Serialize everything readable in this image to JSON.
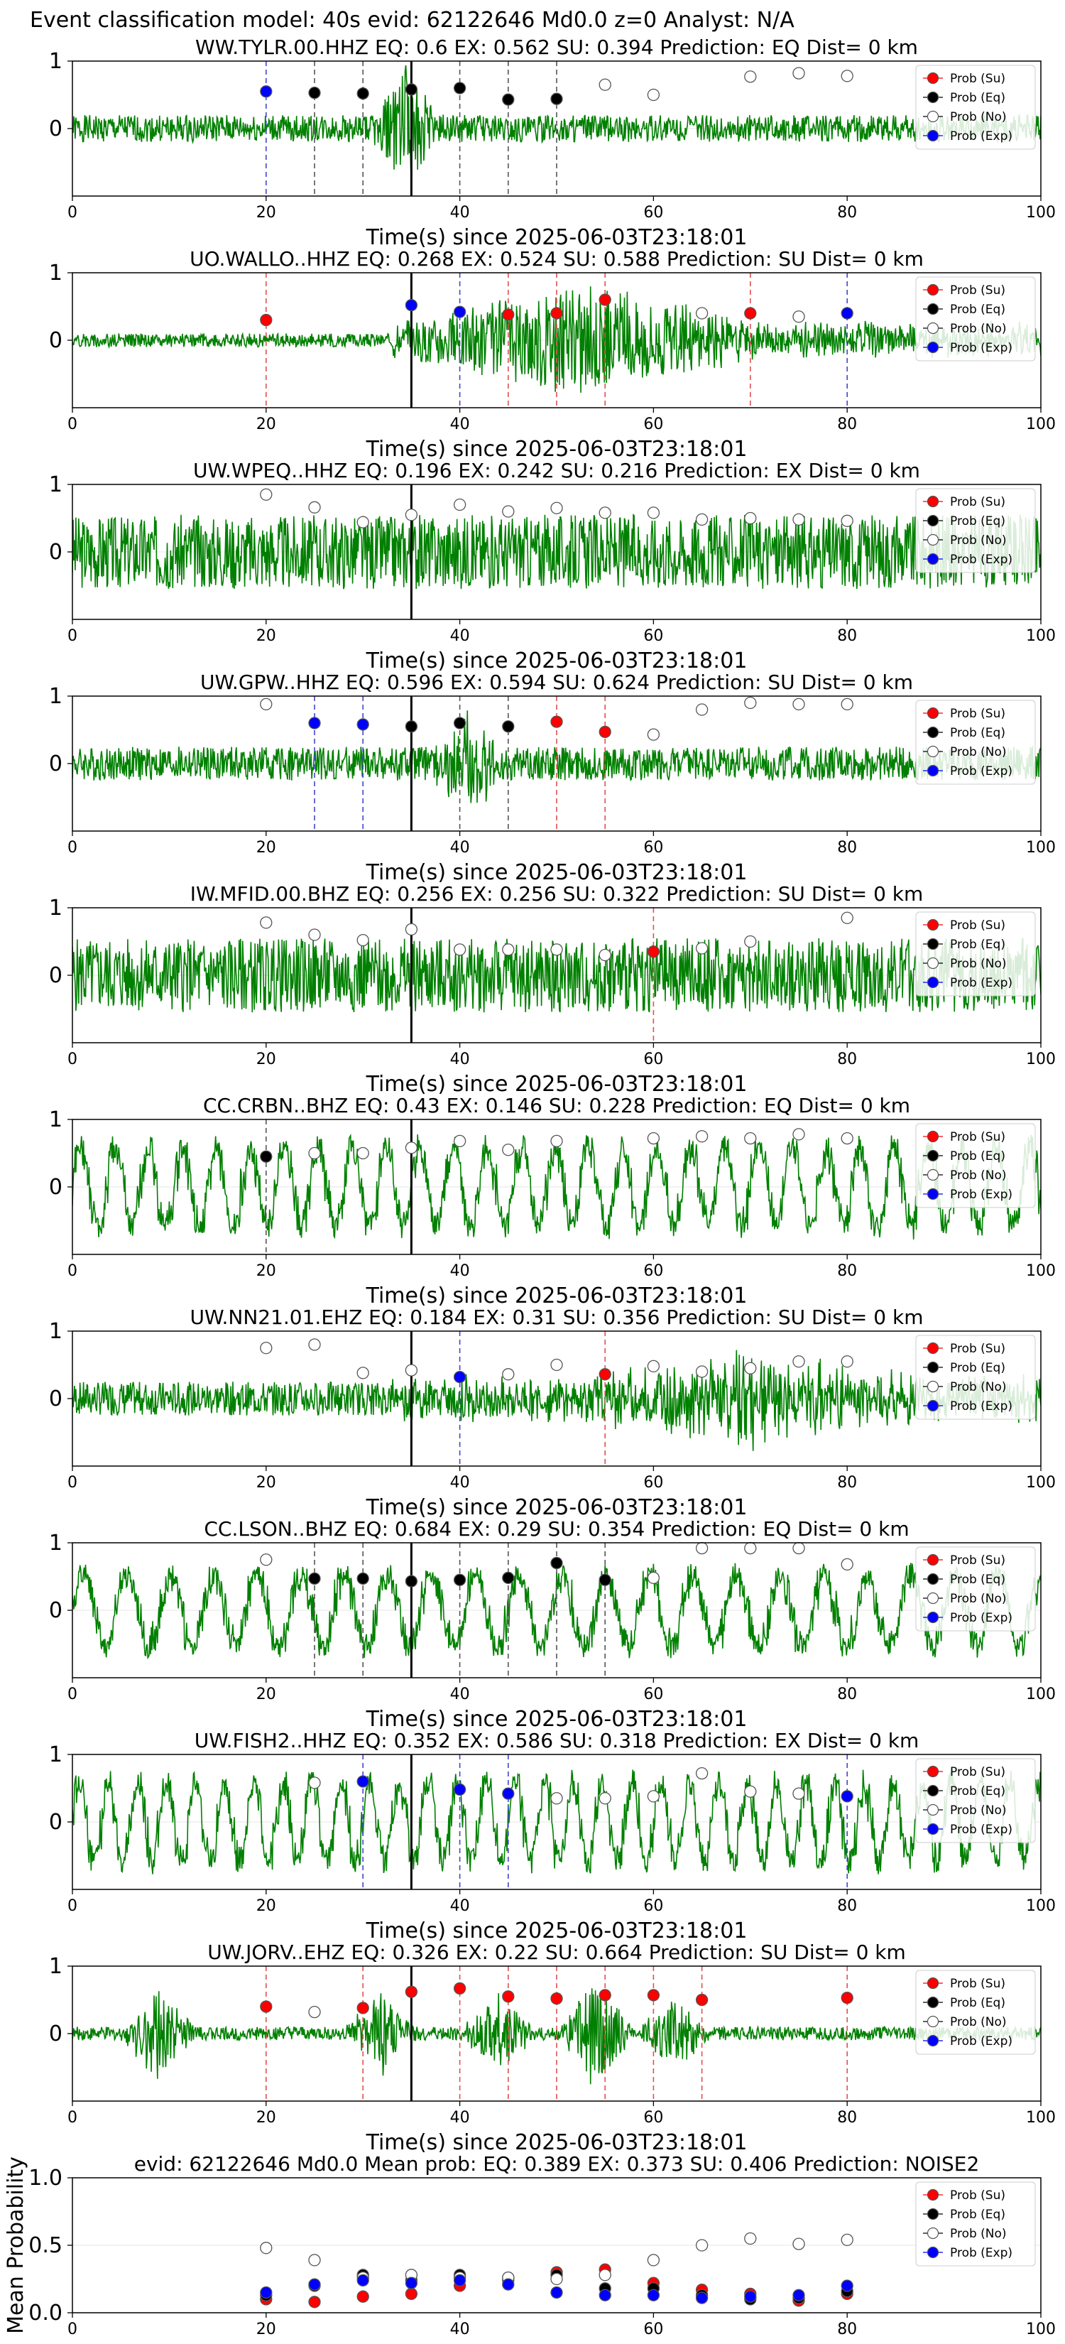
{
  "suptitle": "Event classification model: 40s evid: 62122646 Md0.0 z=0 Analyst: N/A",
  "colors": {
    "waveform": "#008000",
    "su": "#ff0000",
    "eq": "#000000",
    "no": "#ffffff",
    "exp": "#0000ff",
    "marker_edge": "#555555",
    "origin_line": "#000000"
  },
  "legend": {
    "placement": "top-right",
    "entries": [
      "Prob (Su)",
      "Prob (Eq)",
      "Prob (No)",
      "Prob (Exp)"
    ]
  },
  "chart_data": [
    {
      "type": "scatter",
      "title": "WW.TYLR.00.HHZ   EQ: 0.6   EX: 0.562   SU: 0.394   Prediction: EQ    Dist= 0 km",
      "xlabel": "Time(s) since 2025-06-03T23:18:01",
      "xlim": [
        0,
        100
      ],
      "ylim": [
        -1,
        1
      ],
      "xticks": [
        0,
        20,
        40,
        60,
        80,
        100
      ],
      "yticks": [
        0,
        1
      ],
      "origin_line_x": 35,
      "waveform": {
        "amp": 0.2,
        "style": "event",
        "event_center": 34.5,
        "event_amp": 0.9,
        "seed": 1
      },
      "points": [
        {
          "x": 20,
          "y": 0.55,
          "cls": "exp"
        },
        {
          "x": 25,
          "y": 0.53,
          "cls": "eq"
        },
        {
          "x": 30,
          "y": 0.52,
          "cls": "eq"
        },
        {
          "x": 35,
          "y": 0.58,
          "cls": "eq"
        },
        {
          "x": 40,
          "y": 0.6,
          "cls": "eq"
        },
        {
          "x": 45,
          "y": 0.43,
          "cls": "eq"
        },
        {
          "x": 50,
          "y": 0.44,
          "cls": "eq"
        },
        {
          "x": 55,
          "y": 0.65,
          "cls": "no"
        },
        {
          "x": 60,
          "y": 0.5,
          "cls": "no"
        },
        {
          "x": 70,
          "y": 0.77,
          "cls": "no"
        },
        {
          "x": 75,
          "y": 0.82,
          "cls": "no"
        },
        {
          "x": 80,
          "y": 0.78,
          "cls": "no"
        }
      ]
    },
    {
      "type": "scatter",
      "title": "UO.WALLO..HHZ   EQ: 0.268   EX: 0.524   SU: 0.588   Prediction: SU    Dist= 0 km",
      "xlabel": "Time(s) since 2025-06-03T23:18:01",
      "xlim": [
        0,
        100
      ],
      "ylim": [
        -1,
        1
      ],
      "xticks": [
        0,
        20,
        40,
        60,
        80,
        100
      ],
      "yticks": [
        0,
        1
      ],
      "origin_line_x": 35,
      "waveform": {
        "amp": 0.1,
        "style": "growing",
        "event_center": 52,
        "event_amp": 0.8,
        "seed": 2
      },
      "points": [
        {
          "x": 20,
          "y": 0.3,
          "cls": "su"
        },
        {
          "x": 35,
          "y": 0.52,
          "cls": "exp"
        },
        {
          "x": 40,
          "y": 0.42,
          "cls": "exp"
        },
        {
          "x": 45,
          "y": 0.38,
          "cls": "su"
        },
        {
          "x": 50,
          "y": 0.4,
          "cls": "su"
        },
        {
          "x": 55,
          "y": 0.6,
          "cls": "su"
        },
        {
          "x": 65,
          "y": 0.4,
          "cls": "no"
        },
        {
          "x": 70,
          "y": 0.4,
          "cls": "su"
        },
        {
          "x": 75,
          "y": 0.35,
          "cls": "no"
        },
        {
          "x": 80,
          "y": 0.4,
          "cls": "exp"
        }
      ]
    },
    {
      "type": "scatter",
      "title": "UW.WPEQ..HHZ   EQ: 0.196   EX: 0.242   SU: 0.216   Prediction: EX    Dist= 0 km",
      "xlabel": "Time(s) since 2025-06-03T23:18:01",
      "xlim": [
        0,
        100
      ],
      "ylim": [
        -1,
        1
      ],
      "xticks": [
        0,
        20,
        40,
        60,
        80,
        100
      ],
      "yticks": [
        0,
        1
      ],
      "origin_line_x": 35,
      "waveform": {
        "amp": 0.55,
        "style": "noise",
        "seed": 3
      },
      "points": [
        {
          "x": 20,
          "y": 0.85,
          "cls": "no"
        },
        {
          "x": 25,
          "y": 0.66,
          "cls": "no"
        },
        {
          "x": 30,
          "y": 0.44,
          "cls": "no"
        },
        {
          "x": 35,
          "y": 0.55,
          "cls": "no"
        },
        {
          "x": 40,
          "y": 0.7,
          "cls": "no"
        },
        {
          "x": 45,
          "y": 0.6,
          "cls": "no"
        },
        {
          "x": 50,
          "y": 0.65,
          "cls": "no"
        },
        {
          "x": 55,
          "y": 0.58,
          "cls": "no"
        },
        {
          "x": 60,
          "y": 0.58,
          "cls": "no"
        },
        {
          "x": 65,
          "y": 0.48,
          "cls": "no"
        },
        {
          "x": 70,
          "y": 0.5,
          "cls": "no"
        },
        {
          "x": 75,
          "y": 0.48,
          "cls": "no"
        },
        {
          "x": 80,
          "y": 0.46,
          "cls": "no"
        }
      ]
    },
    {
      "type": "scatter",
      "title": "UW.GPW..HHZ   EQ: 0.596   EX: 0.594   SU: 0.624   Prediction: SU    Dist= 0 km",
      "xlabel": "Time(s) since 2025-06-03T23:18:01",
      "xlim": [
        0,
        100
      ],
      "ylim": [
        -1,
        1
      ],
      "xticks": [
        0,
        20,
        40,
        60,
        80,
        100
      ],
      "yticks": [
        0,
        1
      ],
      "origin_line_x": 35,
      "waveform": {
        "amp": 0.25,
        "style": "event",
        "event_center": 41,
        "event_amp": 0.7,
        "seed": 4
      },
      "points": [
        {
          "x": 20,
          "y": 0.88,
          "cls": "no"
        },
        {
          "x": 25,
          "y": 0.6,
          "cls": "exp"
        },
        {
          "x": 30,
          "y": 0.58,
          "cls": "exp"
        },
        {
          "x": 35,
          "y": 0.55,
          "cls": "eq"
        },
        {
          "x": 40,
          "y": 0.6,
          "cls": "eq"
        },
        {
          "x": 45,
          "y": 0.55,
          "cls": "eq"
        },
        {
          "x": 50,
          "y": 0.62,
          "cls": "su"
        },
        {
          "x": 55,
          "y": 0.47,
          "cls": "su"
        },
        {
          "x": 60,
          "y": 0.43,
          "cls": "no"
        },
        {
          "x": 65,
          "y": 0.8,
          "cls": "no"
        },
        {
          "x": 70,
          "y": 0.9,
          "cls": "no"
        },
        {
          "x": 75,
          "y": 0.88,
          "cls": "no"
        },
        {
          "x": 80,
          "y": 0.88,
          "cls": "no"
        }
      ]
    },
    {
      "type": "scatter",
      "title": "IW.MFID.00.BHZ   EQ: 0.256   EX: 0.256   SU: 0.322   Prediction: SU    Dist= 0 km",
      "xlabel": "Time(s) since 2025-06-03T23:18:01",
      "xlim": [
        0,
        100
      ],
      "ylim": [
        -1,
        1
      ],
      "xticks": [
        0,
        20,
        40,
        60,
        80,
        100
      ],
      "yticks": [
        0,
        1
      ],
      "origin_line_x": 35,
      "waveform": {
        "amp": 0.55,
        "style": "noise",
        "seed": 5
      },
      "points": [
        {
          "x": 20,
          "y": 0.78,
          "cls": "no"
        },
        {
          "x": 25,
          "y": 0.6,
          "cls": "no"
        },
        {
          "x": 30,
          "y": 0.52,
          "cls": "no"
        },
        {
          "x": 35,
          "y": 0.68,
          "cls": "no"
        },
        {
          "x": 40,
          "y": 0.38,
          "cls": "no"
        },
        {
          "x": 45,
          "y": 0.38,
          "cls": "no"
        },
        {
          "x": 50,
          "y": 0.38,
          "cls": "no"
        },
        {
          "x": 55,
          "y": 0.3,
          "cls": "no"
        },
        {
          "x": 60,
          "y": 0.35,
          "cls": "su"
        },
        {
          "x": 65,
          "y": 0.4,
          "cls": "no"
        },
        {
          "x": 70,
          "y": 0.5,
          "cls": "no"
        },
        {
          "x": 80,
          "y": 0.85,
          "cls": "no"
        }
      ]
    },
    {
      "type": "scatter",
      "title": "CC.CRBN..BHZ   EQ: 0.43   EX: 0.146   SU: 0.228   Prediction: EQ    Dist= 0 km",
      "xlabel": "Time(s) since 2025-06-03T23:18:01",
      "xlim": [
        0,
        100
      ],
      "ylim": [
        -1,
        1
      ],
      "xticks": [
        0,
        20,
        40,
        60,
        80,
        100
      ],
      "yticks": [
        0,
        1
      ],
      "origin_line_x": 35,
      "waveform": {
        "amp": 0.6,
        "style": "oscillating",
        "period": 3.5,
        "seed": 6
      },
      "points": [
        {
          "x": 20,
          "y": 0.45,
          "cls": "eq"
        },
        {
          "x": 25,
          "y": 0.5,
          "cls": "no"
        },
        {
          "x": 30,
          "y": 0.5,
          "cls": "no"
        },
        {
          "x": 35,
          "y": 0.58,
          "cls": "no"
        },
        {
          "x": 40,
          "y": 0.68,
          "cls": "no"
        },
        {
          "x": 45,
          "y": 0.55,
          "cls": "no"
        },
        {
          "x": 50,
          "y": 0.68,
          "cls": "no"
        },
        {
          "x": 60,
          "y": 0.72,
          "cls": "no"
        },
        {
          "x": 65,
          "y": 0.75,
          "cls": "no"
        },
        {
          "x": 70,
          "y": 0.72,
          "cls": "no"
        },
        {
          "x": 75,
          "y": 0.78,
          "cls": "no"
        },
        {
          "x": 80,
          "y": 0.72,
          "cls": "no"
        }
      ]
    },
    {
      "type": "scatter",
      "title": "UW.NN21.01.EHZ   EQ: 0.184   EX: 0.31   SU: 0.356   Prediction: SU    Dist= 0 km",
      "xlabel": "Time(s) since 2025-06-03T23:18:01",
      "xlim": [
        0,
        100
      ],
      "ylim": [
        -1,
        1
      ],
      "xticks": [
        0,
        20,
        40,
        60,
        80,
        100
      ],
      "yticks": [
        0,
        1
      ],
      "origin_line_x": 35,
      "waveform": {
        "amp": 0.25,
        "style": "growing",
        "event_center": 70,
        "event_amp": 0.55,
        "seed": 7
      },
      "points": [
        {
          "x": 20,
          "y": 0.75,
          "cls": "no"
        },
        {
          "x": 25,
          "y": 0.8,
          "cls": "no"
        },
        {
          "x": 30,
          "y": 0.38,
          "cls": "no"
        },
        {
          "x": 35,
          "y": 0.42,
          "cls": "no"
        },
        {
          "x": 40,
          "y": 0.32,
          "cls": "exp"
        },
        {
          "x": 45,
          "y": 0.36,
          "cls": "no"
        },
        {
          "x": 50,
          "y": 0.5,
          "cls": "no"
        },
        {
          "x": 55,
          "y": 0.36,
          "cls": "su"
        },
        {
          "x": 60,
          "y": 0.48,
          "cls": "no"
        },
        {
          "x": 65,
          "y": 0.4,
          "cls": "no"
        },
        {
          "x": 70,
          "y": 0.45,
          "cls": "no"
        },
        {
          "x": 75,
          "y": 0.55,
          "cls": "no"
        },
        {
          "x": 80,
          "y": 0.55,
          "cls": "no"
        }
      ]
    },
    {
      "type": "scatter",
      "title": "CC.LSON..BHZ   EQ: 0.684   EX: 0.29   SU: 0.354   Prediction: EQ    Dist= 0 km",
      "xlabel": "Time(s) since 2025-06-03T23:18:01",
      "xlim": [
        0,
        100
      ],
      "ylim": [
        -1,
        1
      ],
      "xticks": [
        0,
        20,
        40,
        60,
        80,
        100
      ],
      "yticks": [
        0,
        1
      ],
      "origin_line_x": 35,
      "waveform": {
        "amp": 0.55,
        "style": "oscillating",
        "period": 4.5,
        "seed": 8
      },
      "points": [
        {
          "x": 20,
          "y": 0.75,
          "cls": "no"
        },
        {
          "x": 25,
          "y": 0.47,
          "cls": "eq"
        },
        {
          "x": 30,
          "y": 0.47,
          "cls": "eq"
        },
        {
          "x": 35,
          "y": 0.43,
          "cls": "eq"
        },
        {
          "x": 40,
          "y": 0.45,
          "cls": "eq"
        },
        {
          "x": 45,
          "y": 0.48,
          "cls": "eq"
        },
        {
          "x": 50,
          "y": 0.7,
          "cls": "eq"
        },
        {
          "x": 55,
          "y": 0.45,
          "cls": "eq"
        },
        {
          "x": 60,
          "y": 0.48,
          "cls": "no"
        },
        {
          "x": 65,
          "y": 0.92,
          "cls": "no"
        },
        {
          "x": 70,
          "y": 0.92,
          "cls": "no"
        },
        {
          "x": 75,
          "y": 0.92,
          "cls": "no"
        },
        {
          "x": 80,
          "y": 0.68,
          "cls": "no"
        }
      ]
    },
    {
      "type": "scatter",
      "title": "UW.FISH2..HHZ   EQ: 0.352   EX: 0.586   SU: 0.318   Prediction: EX    Dist= 0 km",
      "xlabel": "Time(s) since 2025-06-03T23:18:01",
      "xlim": [
        0,
        100
      ],
      "ylim": [
        -1,
        1
      ],
      "xticks": [
        0,
        20,
        40,
        60,
        80,
        100
      ],
      "yticks": [
        0,
        1
      ],
      "origin_line_x": 35,
      "waveform": {
        "amp": 0.6,
        "style": "oscillating",
        "period": 3.0,
        "seed": 9
      },
      "points": [
        {
          "x": 25,
          "y": 0.58,
          "cls": "no"
        },
        {
          "x": 30,
          "y": 0.6,
          "cls": "exp"
        },
        {
          "x": 40,
          "y": 0.48,
          "cls": "exp"
        },
        {
          "x": 45,
          "y": 0.42,
          "cls": "exp"
        },
        {
          "x": 50,
          "y": 0.35,
          "cls": "no"
        },
        {
          "x": 55,
          "y": 0.35,
          "cls": "no"
        },
        {
          "x": 60,
          "y": 0.38,
          "cls": "no"
        },
        {
          "x": 65,
          "y": 0.72,
          "cls": "no"
        },
        {
          "x": 70,
          "y": 0.45,
          "cls": "no"
        },
        {
          "x": 75,
          "y": 0.42,
          "cls": "no"
        },
        {
          "x": 80,
          "y": 0.38,
          "cls": "exp"
        }
      ]
    },
    {
      "type": "scatter",
      "title": "UW.JORV..EHZ   EQ: 0.326   EX: 0.22   SU: 0.664   Prediction: SU    Dist= 0 km",
      "xlabel": "Time(s) since 2025-06-03T23:18:01",
      "xlim": [
        0,
        100
      ],
      "ylim": [
        -1,
        1
      ],
      "xticks": [
        0,
        20,
        40,
        60,
        80,
        100
      ],
      "yticks": [
        0,
        1
      ],
      "origin_line_x": 35,
      "waveform": {
        "amp": 0.1,
        "style": "bursts",
        "bursts": [
          [
            9,
            0.7
          ],
          [
            32,
            0.6
          ],
          [
            44,
            0.55
          ],
          [
            54,
            0.8
          ],
          [
            62,
            0.5
          ]
        ],
        "seed": 10
      },
      "points": [
        {
          "x": 20,
          "y": 0.4,
          "cls": "su"
        },
        {
          "x": 25,
          "y": 0.32,
          "cls": "no"
        },
        {
          "x": 30,
          "y": 0.38,
          "cls": "su"
        },
        {
          "x": 35,
          "y": 0.62,
          "cls": "su"
        },
        {
          "x": 40,
          "y": 0.67,
          "cls": "su"
        },
        {
          "x": 45,
          "y": 0.55,
          "cls": "su"
        },
        {
          "x": 50,
          "y": 0.52,
          "cls": "su"
        },
        {
          "x": 55,
          "y": 0.57,
          "cls": "su"
        },
        {
          "x": 60,
          "y": 0.57,
          "cls": "su"
        },
        {
          "x": 65,
          "y": 0.5,
          "cls": "su"
        },
        {
          "x": 80,
          "y": 0.53,
          "cls": "su"
        }
      ]
    },
    {
      "type": "scatter",
      "title": "evid: 62122646  Md0.0   Mean prob:   EQ: 0.389   EX: 0.373   SU: 0.406   Prediction: NOISE2",
      "ylabel": "Mean Probability",
      "xlim": [
        0,
        100
      ],
      "ylim": [
        0,
        1
      ],
      "xticks": [
        0,
        20,
        40,
        60,
        80,
        100
      ],
      "yticks": [
        0.0,
        0.5,
        1.0
      ],
      "ytick_labels": [
        "0.0",
        "0.5",
        "1.0"
      ],
      "series": [
        {
          "name": "Prob (Su)",
          "cls": "su",
          "x": [
            20,
            25,
            30,
            35,
            40,
            45,
            50,
            55,
            60,
            65,
            70,
            75,
            80
          ],
          "y": [
            0.1,
            0.08,
            0.12,
            0.14,
            0.2,
            0.26,
            0.3,
            0.32,
            0.22,
            0.17,
            0.14,
            0.09,
            0.14
          ]
        },
        {
          "name": "Prob (Eq)",
          "cls": "eq",
          "x": [
            20,
            25,
            30,
            35,
            40,
            45,
            50,
            55,
            60,
            65,
            70,
            75,
            80
          ],
          "y": [
            0.13,
            0.2,
            0.28,
            0.24,
            0.28,
            0.24,
            0.28,
            0.18,
            0.18,
            0.13,
            0.1,
            0.11,
            0.16
          ]
        },
        {
          "name": "Prob (No)",
          "cls": "no",
          "x": [
            20,
            25,
            30,
            35,
            40,
            45,
            50,
            55,
            60,
            65,
            70,
            75,
            80
          ],
          "y": [
            0.48,
            0.39,
            0.26,
            0.28,
            0.26,
            0.26,
            0.25,
            0.28,
            0.39,
            0.5,
            0.55,
            0.51,
            0.54
          ]
        },
        {
          "name": "Prob (Exp)",
          "cls": "exp",
          "x": [
            20,
            25,
            30,
            35,
            40,
            45,
            50,
            55,
            60,
            65,
            70,
            75,
            80
          ],
          "y": [
            0.15,
            0.21,
            0.24,
            0.22,
            0.24,
            0.21,
            0.15,
            0.13,
            0.13,
            0.11,
            0.12,
            0.13,
            0.2
          ]
        }
      ]
    }
  ]
}
